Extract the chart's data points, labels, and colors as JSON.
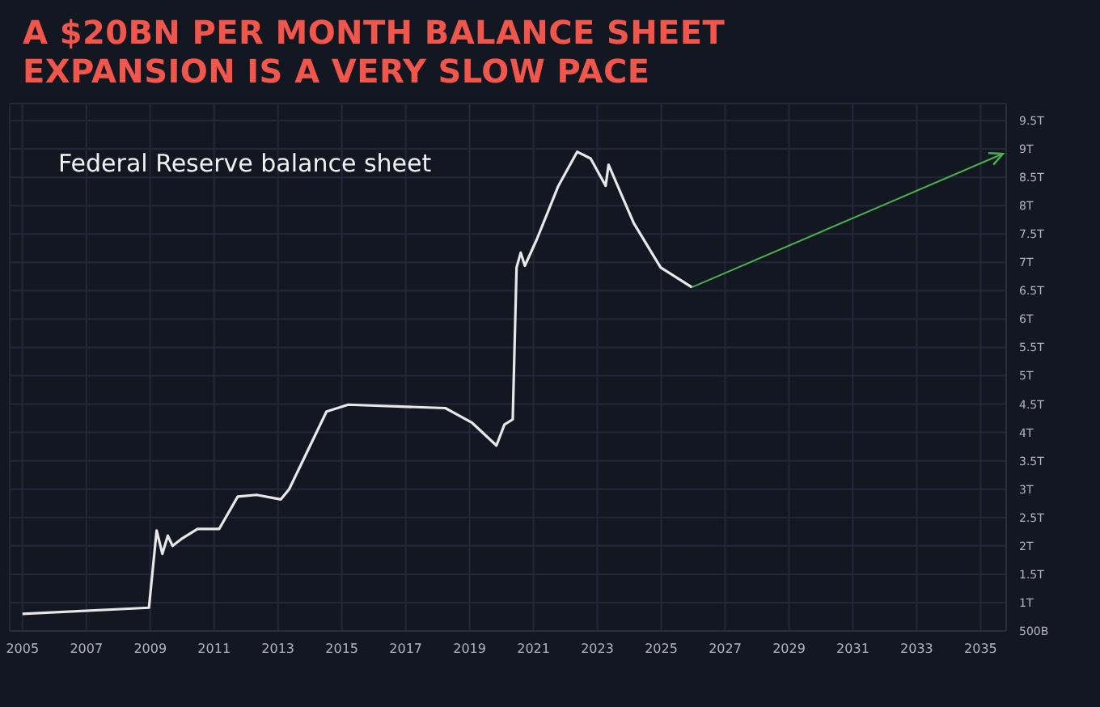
{
  "chart_data": {
    "type": "line",
    "title": "A $20BN PER MONTH BALANCE SHEET EXPANSION IS A VERY SLOW PACE",
    "annotations": [
      "Federal Reserve balance sheet"
    ],
    "series": [
      {
        "color": "#e8e8e8",
        "x": [
          2005.0,
          2008.96,
          2009.2,
          2009.38,
          2009.55,
          2009.7,
          2009.97,
          2010.48,
          2011.16,
          2011.74,
          2012.33,
          2013.09,
          2013.35,
          2014.52,
          2015.2,
          2018.24,
          2019.08,
          2019.84,
          2020.09,
          2020.35,
          2020.47,
          2020.6,
          2020.73,
          2021.1,
          2021.78,
          2022.37,
          2022.79,
          2023.26,
          2023.35,
          2023.55,
          2024.14,
          2024.98,
          2025.96
        ],
        "values": [
          800000000000,
          910000000000,
          2270000000000,
          1860000000000,
          2180000000000,
          2000000000000,
          2120000000000,
          2300000000000,
          2300000000000,
          2870000000000,
          2900000000000,
          2820000000000,
          3000000000000,
          4370000000000,
          4490000000000,
          4430000000000,
          4170000000000,
          3770000000000,
          4140000000000,
          4230000000000,
          6910000000000,
          7170000000000,
          6940000000000,
          7400000000000,
          8350000000000,
          8950000000000,
          8830000000000,
          8350000000000,
          8720000000000,
          8460000000000,
          7690000000000,
          6910000000000,
          6560000000000
        ]
      }
    ],
    "xlim": [
      2004.6,
      2035.8
    ],
    "xticks": [
      2005,
      2007,
      2009,
      2011,
      2013,
      2015,
      2017,
      2019,
      2021,
      2023,
      2025,
      2027,
      2029,
      2031,
      2033,
      2035
    ],
    "ylim": [
      500000000000,
      9800000000000
    ],
    "yticks": [
      {
        "value": 500000000000,
        "label": "500B"
      },
      {
        "value": 1000000000000,
        "label": "1T"
      },
      {
        "value": 1500000000000,
        "label": "1.5T"
      },
      {
        "value": 2000000000000,
        "label": "2T"
      },
      {
        "value": 2500000000000,
        "label": "2.5T"
      },
      {
        "value": 3000000000000,
        "label": "3T"
      },
      {
        "value": 3500000000000,
        "label": "3.5T"
      },
      {
        "value": 4000000000000,
        "label": "4T"
      },
      {
        "value": 4500000000000,
        "label": "4.5T"
      },
      {
        "value": 5000000000000,
        "label": "5T"
      },
      {
        "value": 5500000000000,
        "label": "5.5T"
      },
      {
        "value": 6000000000000,
        "label": "6T"
      },
      {
        "value": 6500000000000,
        "label": "6.5T"
      },
      {
        "value": 7000000000000,
        "label": "7T"
      },
      {
        "value": 7500000000000,
        "label": "7.5T"
      },
      {
        "value": 8000000000000,
        "label": "8T"
      },
      {
        "value": 8500000000000,
        "label": "8.5T"
      },
      {
        "value": 9000000000000,
        "label": "9T"
      },
      {
        "value": 9500000000000,
        "label": "9.5T"
      }
    ],
    "grid": true,
    "marker": "none"
  }
}
